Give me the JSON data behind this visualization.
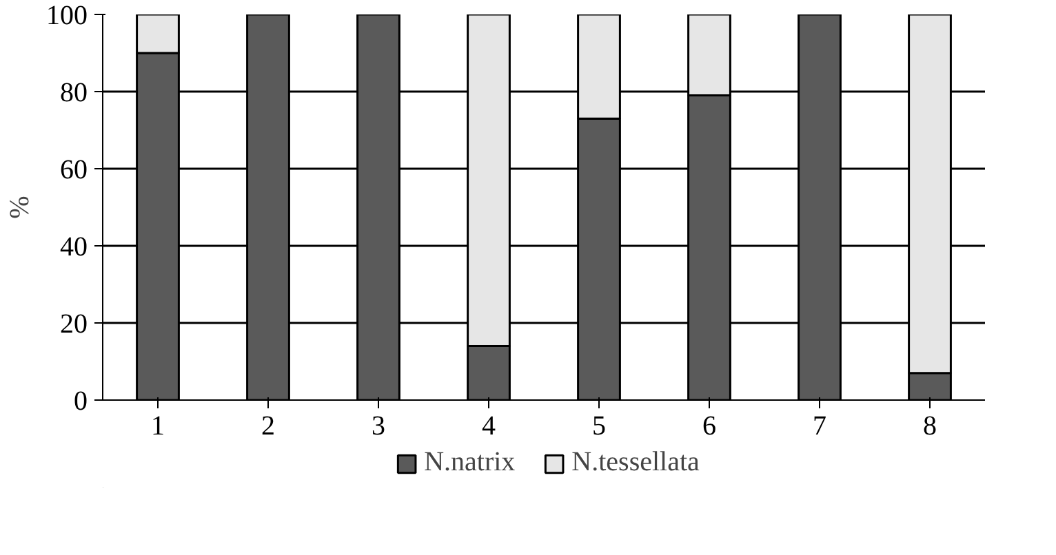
{
  "chart_data": {
    "type": "bar",
    "stacked": true,
    "ylabel": "%",
    "categories": [
      "1",
      "2",
      "3",
      "4",
      "5",
      "6",
      "7",
      "8"
    ],
    "series": [
      {
        "name": "N.natrix",
        "color": "#5a5a5a",
        "values": [
          90,
          100,
          100,
          14,
          73,
          79,
          100,
          7
        ]
      },
      {
        "name": "N.tessellata",
        "color": "#e6e6e6",
        "values": [
          10,
          0,
          0,
          86,
          27,
          21,
          0,
          93
        ]
      }
    ],
    "ylim": [
      0,
      100
    ],
    "yticks": [
      0,
      20,
      40,
      60,
      80,
      100
    ],
    "grid": "y",
    "legend": "bottom"
  }
}
